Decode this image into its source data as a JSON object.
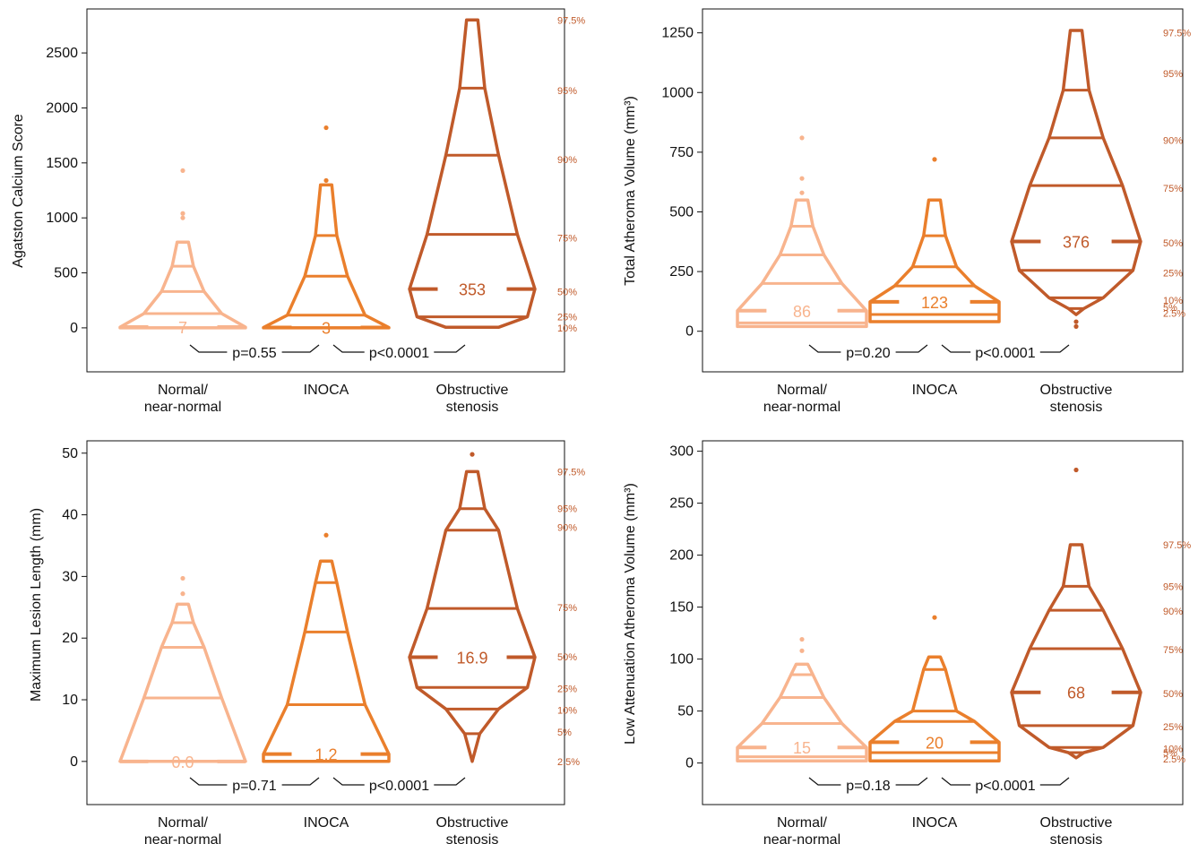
{
  "colors": {
    "normal": "#f8b48e",
    "inoca": "#ea7f2c",
    "obstructive": "#c05a2a",
    "axis": "#111111"
  },
  "chart_data": [
    {
      "type": "boxenplot",
      "ylabel": "Agatston Calcium Score",
      "ylim": [
        -400,
        2900
      ],
      "yticks": [
        0,
        500,
        1000,
        1500,
        2000,
        2500
      ],
      "categories": [
        "Normal/\nnear-normal",
        "INOCA",
        "Obstructive\nstenosis"
      ],
      "series": [
        {
          "median_label": "7",
          "levels": [
            {
              "q": "min",
              "v": 0
            },
            {
              "q": "25%",
              "v": 0
            },
            {
              "q": "50%",
              "v": 7
            },
            {
              "q": "75%",
              "v": 130
            },
            {
              "q": "90%",
              "v": 330
            },
            {
              "q": "95%",
              "v": 560
            },
            {
              "q": "97.5%",
              "v": 780
            }
          ],
          "outliers": [
            1000,
            1040,
            1430
          ]
        },
        {
          "median_label": "3",
          "levels": [
            {
              "q": "min",
              "v": 0
            },
            {
              "q": "25%",
              "v": 0
            },
            {
              "q": "50%",
              "v": 3
            },
            {
              "q": "75%",
              "v": 115
            },
            {
              "q": "90%",
              "v": 470
            },
            {
              "q": "95%",
              "v": 840
            },
            {
              "q": "97.5%",
              "v": 1300
            }
          ],
          "outliers": [
            1340,
            1820
          ]
        },
        {
          "median_label": "353",
          "levels": [
            {
              "q": "10%",
              "v": 5
            },
            {
              "q": "25%",
              "v": 100
            },
            {
              "q": "50%",
              "v": 353
            },
            {
              "q": "75%",
              "v": 850
            },
            {
              "q": "90%",
              "v": 1570
            },
            {
              "q": "95%",
              "v": 2180
            },
            {
              "q": "97.5%",
              "v": 2800
            }
          ],
          "outliers": [],
          "pct_labels": [
            {
              "t": "97.5%",
              "v": 2800
            },
            {
              "t": "95%",
              "v": 2160
            },
            {
              "t": "90%",
              "v": 1530
            },
            {
              "t": "75%",
              "v": 820
            },
            {
              "t": "50%",
              "v": 330
            },
            {
              "t": "25%",
              "v": 100
            },
            {
              "t": "10%",
              "v": 0
            }
          ]
        }
      ],
      "pvalues": [
        "p=0.55",
        "p<0.0001"
      ]
    },
    {
      "type": "boxenplot",
      "ylabel": "Total Atheroma Volume (mm³)",
      "ylim": [
        -170,
        1350
      ],
      "yticks": [
        0,
        250,
        500,
        750,
        1000,
        1250
      ],
      "categories": [
        "Normal/\nnear-normal",
        "INOCA",
        "Obstructive\nstenosis"
      ],
      "series": [
        {
          "median_label": "86",
          "levels": [
            {
              "q": "min",
              "v": 20
            },
            {
              "q": "25%",
              "v": 35
            },
            {
              "q": "50%",
              "v": 86
            },
            {
              "q": "75%",
              "v": 200
            },
            {
              "q": "90%",
              "v": 320
            },
            {
              "q": "95%",
              "v": 440
            },
            {
              "q": "97.5%",
              "v": 550
            }
          ],
          "outliers": [
            580,
            640,
            810
          ]
        },
        {
          "median_label": "123",
          "levels": [
            {
              "q": "min",
              "v": 40
            },
            {
              "q": "25%",
              "v": 70
            },
            {
              "q": "50%",
              "v": 123
            },
            {
              "q": "75%",
              "v": 190
            },
            {
              "q": "90%",
              "v": 270
            },
            {
              "q": "95%",
              "v": 400
            },
            {
              "q": "97.5%",
              "v": 550
            }
          ],
          "outliers": [
            720
          ]
        },
        {
          "median_label": "376",
          "levels": [
            {
              "q": "2.5%",
              "v": 70
            },
            {
              "q": "5%",
              "v": 95
            },
            {
              "q": "10%",
              "v": 140
            },
            {
              "q": "25%",
              "v": 255
            },
            {
              "q": "50%",
              "v": 376
            },
            {
              "q": "75%",
              "v": 610
            },
            {
              "q": "90%",
              "v": 810
            },
            {
              "q": "95%",
              "v": 1010
            },
            {
              "q": "97.5%",
              "v": 1260
            }
          ],
          "outliers": [
            20,
            40
          ],
          "pct_labels": [
            {
              "t": "97.5%",
              "v": 1250
            },
            {
              "t": "95%",
              "v": 1080
            },
            {
              "t": "90%",
              "v": 800
            },
            {
              "t": "75%",
              "v": 600
            },
            {
              "t": "50%",
              "v": 370
            },
            {
              "t": "25%",
              "v": 245
            },
            {
              "t": "10%",
              "v": 130
            },
            {
              "t": "5%",
              "v": 100
            },
            {
              "t": "2.5%",
              "v": 75
            }
          ]
        }
      ],
      "pvalues": [
        "p=0.20",
        "p<0.0001"
      ]
    },
    {
      "type": "boxenplot",
      "ylabel": "Maximum Lesion Length (mm)",
      "ylim": [
        -7,
        52
      ],
      "yticks": [
        0,
        10,
        20,
        30,
        40,
        50
      ],
      "categories": [
        "Normal/\nnear-normal",
        "INOCA",
        "Obstructive\nstenosis"
      ],
      "series": [
        {
          "median_label": "0.0",
          "levels": [
            {
              "q": "min",
              "v": 0
            },
            {
              "q": "25%",
              "v": 0
            },
            {
              "q": "50%",
              "v": 0
            },
            {
              "q": "75%",
              "v": 10.3
            },
            {
              "q": "90%",
              "v": 18.5
            },
            {
              "q": "95%",
              "v": 22.5
            },
            {
              "q": "97.5%",
              "v": 25.5
            }
          ],
          "outliers": [
            27.2,
            29.7
          ]
        },
        {
          "median_label": "1.2",
          "levels": [
            {
              "q": "min",
              "v": 0
            },
            {
              "q": "25%",
              "v": 0
            },
            {
              "q": "50%",
              "v": 1.2
            },
            {
              "q": "75%",
              "v": 9.2
            },
            {
              "q": "90%",
              "v": 21
            },
            {
              "q": "95%",
              "v": 29
            },
            {
              "q": "97.5%",
              "v": 32.5
            }
          ],
          "outliers": [
            36.7
          ]
        },
        {
          "median_label": "16.9",
          "levels": [
            {
              "q": "2.5%",
              "v": 0
            },
            {
              "q": "5%",
              "v": 4.5
            },
            {
              "q": "10%",
              "v": 8.5
            },
            {
              "q": "25%",
              "v": 12
            },
            {
              "q": "50%",
              "v": 16.9
            },
            {
              "q": "75%",
              "v": 24.8
            },
            {
              "q": "90%",
              "v": 37.5
            },
            {
              "q": "95%",
              "v": 41
            },
            {
              "q": "97.5%",
              "v": 47
            }
          ],
          "outliers": [
            49.8
          ],
          "pct_labels": [
            {
              "t": "97.5%",
              "v": 47
            },
            {
              "t": "95%",
              "v": 41
            },
            {
              "t": "90%",
              "v": 38
            },
            {
              "t": "75%",
              "v": 25
            },
            {
              "t": "50%",
              "v": 17
            },
            {
              "t": "25%",
              "v": 11.8
            },
            {
              "t": "10%",
              "v": 8.3
            },
            {
              "t": "5%",
              "v": 4.8
            },
            {
              "t": "2.5%",
              "v": 0
            }
          ]
        }
      ],
      "pvalues": [
        "p=0.71",
        "p<0.0001"
      ]
    },
    {
      "type": "boxenplot",
      "ylabel": "Low Attenuation Atheroma Volume (mm³)",
      "ylim": [
        -40,
        310
      ],
      "yticks": [
        0,
        50,
        100,
        150,
        200,
        250,
        300
      ],
      "categories": [
        "Normal/\nnear-normal",
        "INOCA",
        "Obstructive\nstenosis"
      ],
      "series": [
        {
          "median_label": "15",
          "levels": [
            {
              "q": "min",
              "v": 2
            },
            {
              "q": "25%",
              "v": 6
            },
            {
              "q": "50%",
              "v": 15
            },
            {
              "q": "75%",
              "v": 38
            },
            {
              "q": "90%",
              "v": 63
            },
            {
              "q": "95%",
              "v": 85
            },
            {
              "q": "97.5%",
              "v": 95
            }
          ],
          "outliers": [
            108,
            119
          ]
        },
        {
          "median_label": "20",
          "levels": [
            {
              "q": "min",
              "v": 2
            },
            {
              "q": "25%",
              "v": 10
            },
            {
              "q": "50%",
              "v": 20
            },
            {
              "q": "75%",
              "v": 40
            },
            {
              "q": "90%",
              "v": 50
            },
            {
              "q": "95%",
              "v": 90
            },
            {
              "q": "97.5%",
              "v": 102
            }
          ],
          "outliers": [
            140
          ]
        },
        {
          "median_label": "68",
          "levels": [
            {
              "q": "2.5%",
              "v": 5
            },
            {
              "q": "5%",
              "v": 10
            },
            {
              "q": "10%",
              "v": 15
            },
            {
              "q": "25%",
              "v": 36
            },
            {
              "q": "50%",
              "v": 68
            },
            {
              "q": "75%",
              "v": 110
            },
            {
              "q": "90%",
              "v": 147
            },
            {
              "q": "95%",
              "v": 170
            },
            {
              "q": "97.5%",
              "v": 210
            }
          ],
          "outliers": [
            282
          ],
          "pct_labels": [
            {
              "t": "97.5%",
              "v": 210
            },
            {
              "t": "95%",
              "v": 170
            },
            {
              "t": "90%",
              "v": 146
            },
            {
              "t": "75%",
              "v": 109
            },
            {
              "t": "50%",
              "v": 67
            },
            {
              "t": "25%",
              "v": 35
            },
            {
              "t": "10%",
              "v": 14
            },
            {
              "t": "5%",
              "v": 10
            },
            {
              "t": "2.5%",
              "v": 4
            }
          ]
        }
      ],
      "pvalues": [
        "p=0.18",
        "p<0.0001"
      ]
    }
  ]
}
